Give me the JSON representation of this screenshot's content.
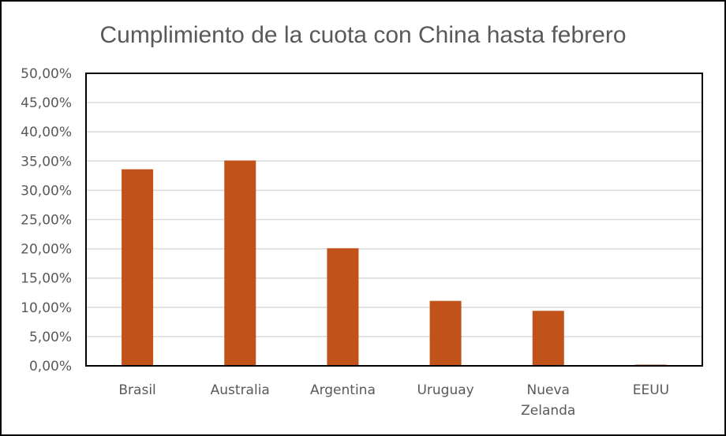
{
  "chart_data": {
    "type": "bar",
    "title": "Cumplimiento  de la cuota con China hasta febrero",
    "xlabel": "",
    "ylabel": "",
    "categories": [
      "Brasil",
      "Australia",
      "Argentina",
      "Uruguay",
      "Nueva Zelanda",
      "EEUU"
    ],
    "category_lines": [
      [
        "Brasil"
      ],
      [
        "Australia"
      ],
      [
        "Argentina"
      ],
      [
        "Uruguay"
      ],
      [
        "Nueva",
        "Zelanda"
      ],
      [
        "EEUU"
      ]
    ],
    "values": [
      33.6,
      35.1,
      20.1,
      11.1,
      9.4,
      0.2
    ],
    "ylim": [
      0,
      50
    ],
    "y_ticks": [
      "0,00%",
      "5,00%",
      "10,00%",
      "15,00%",
      "20,00%",
      "25,00%",
      "30,00%",
      "35,00%",
      "40,00%",
      "45,00%",
      "50,00%"
    ],
    "grid": true,
    "legend": "none",
    "colors": {
      "bar": "#C0521A",
      "grid": "#D9D9D9",
      "plot_border": "#000000",
      "text": "#595959"
    }
  }
}
